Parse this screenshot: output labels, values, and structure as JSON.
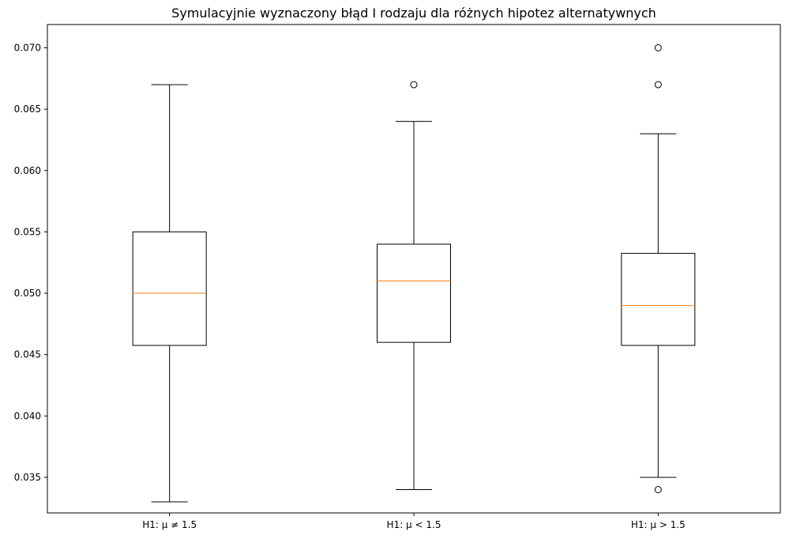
{
  "chart_data": {
    "type": "box",
    "title": "Symulacyjnie wyznaczony błąd I rodzaju dla różnych hipotez alternatywnych",
    "xlabel": "",
    "ylabel": "",
    "ylim": [
      0.0321,
      0.0719
    ],
    "yticks": [
      0.035,
      0.04,
      0.045,
      0.05,
      0.055,
      0.06,
      0.065,
      0.07
    ],
    "ytick_labels": [
      "0.035",
      "0.040",
      "0.045",
      "0.050",
      "0.055",
      "0.060",
      "0.065",
      "0.070"
    ],
    "grid": false,
    "categories": [
      "H1: μ ≠ 1.5",
      "H1: μ < 1.5",
      "H1: μ > 1.5"
    ],
    "boxes": [
      {
        "whisker_low": 0.033,
        "q1": 0.04575,
        "median": 0.05,
        "q3": 0.055,
        "whisker_high": 0.067,
        "outliers": []
      },
      {
        "whisker_low": 0.034,
        "q1": 0.046,
        "median": 0.051,
        "q3": 0.054,
        "whisker_high": 0.064,
        "outliers": [
          0.067
        ]
      },
      {
        "whisker_low": 0.035,
        "q1": 0.04575,
        "median": 0.049,
        "q3": 0.05325,
        "whisker_high": 0.063,
        "outliers": [
          0.034,
          0.067,
          0.07
        ]
      }
    ],
    "colors": {
      "box": "#000000",
      "median": "#ff7f0e"
    }
  }
}
